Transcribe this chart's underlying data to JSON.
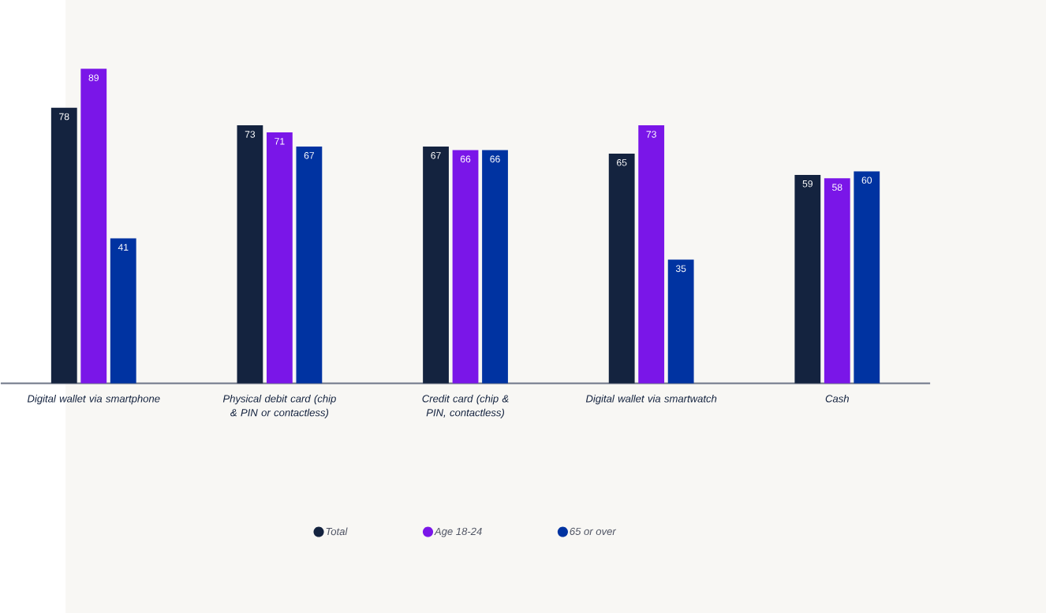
{
  "chart_data": {
    "type": "bar",
    "categories": [
      "Digital wallet via smartphone",
      "Physical debit card (chip & PIN or contactless)",
      "Credit card (chip & PIN, contactless)",
      "Digital wallet via smartwatch",
      "Cash"
    ],
    "series": [
      {
        "name": "Total",
        "color": "#14233f",
        "values": [
          78,
          73,
          67,
          65,
          59
        ]
      },
      {
        "name": "Age 18-24",
        "color": "#7a16e8",
        "values": [
          89,
          71,
          66,
          73,
          58
        ]
      },
      {
        "name": "65 or over",
        "color": "#0033a1",
        "values": [
          41,
          67,
          66,
          35,
          60
        ]
      }
    ],
    "data_labels": true,
    "legend": "bottom",
    "grid": false
  }
}
